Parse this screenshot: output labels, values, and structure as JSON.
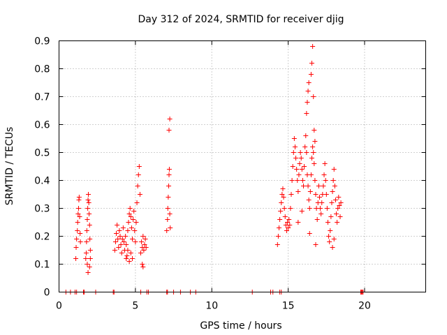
{
  "chart_data": {
    "type": "scatter",
    "title": "Day 312 of 2024, SRMTID for receiver djig",
    "xlabel": "GPS time / hours",
    "ylabel": "SRMTID / TECUs",
    "xlim": [
      0,
      24
    ],
    "ylim": [
      0,
      0.9
    ],
    "xticks": [
      0,
      5,
      10,
      15,
      20
    ],
    "xtick_labels": [
      "0",
      "5",
      "10",
      "15",
      "20"
    ],
    "yticks": [
      0,
      0.1,
      0.2,
      0.3,
      0.4,
      0.5,
      0.6,
      0.7,
      0.8,
      0.9
    ],
    "ytick_labels": [
      "0",
      "0.1",
      "0.2",
      "0.3",
      "0.4",
      "0.5",
      "0.6",
      "0.7",
      "0.8",
      "0.9"
    ],
    "grid": true,
    "marker": "+",
    "color": "#ff0000",
    "series": [
      {
        "name": "SRMTID",
        "points": [
          [
            0.45,
            0
          ],
          [
            0.75,
            0
          ],
          [
            1.05,
            0
          ],
          [
            1.15,
            0
          ],
          [
            1.6,
            0
          ],
          [
            1.65,
            0
          ],
          [
            2.4,
            0
          ],
          [
            3.55,
            0
          ],
          [
            3.6,
            0
          ],
          [
            5.35,
            0
          ],
          [
            5.75,
            0
          ],
          [
            5.85,
            0
          ],
          [
            7.05,
            0
          ],
          [
            7.1,
            0
          ],
          [
            7.5,
            0
          ],
          [
            7.95,
            0
          ],
          [
            8.6,
            0
          ],
          [
            8.95,
            0
          ],
          [
            12.65,
            0
          ],
          [
            13.85,
            0
          ],
          [
            14.0,
            0
          ],
          [
            14.45,
            0
          ],
          [
            14.55,
            0
          ],
          [
            19.75,
            0
          ],
          [
            19.8,
            0
          ],
          [
            19.85,
            0
          ],
          [
            19.9,
            0
          ],
          [
            1.1,
            0.12
          ],
          [
            1.12,
            0.16
          ],
          [
            1.15,
            0.19
          ],
          [
            1.2,
            0.22
          ],
          [
            1.22,
            0.25
          ],
          [
            1.25,
            0.28
          ],
          [
            1.28,
            0.3
          ],
          [
            1.3,
            0.33
          ],
          [
            1.32,
            0.34
          ],
          [
            1.35,
            0.27
          ],
          [
            1.38,
            0.21
          ],
          [
            1.4,
            0.18
          ],
          [
            1.75,
            0.12
          ],
          [
            1.78,
            0.14
          ],
          [
            1.8,
            0.18
          ],
          [
            1.82,
            0.22
          ],
          [
            1.85,
            0.26
          ],
          [
            1.88,
            0.3
          ],
          [
            1.9,
            0.33
          ],
          [
            1.92,
            0.35
          ],
          [
            1.95,
            0.32
          ],
          [
            1.97,
            0.28
          ],
          [
            2.0,
            0.24
          ],
          [
            2.02,
            0.19
          ],
          [
            2.05,
            0.15
          ],
          [
            1.85,
            0.1
          ],
          [
            1.9,
            0.07
          ],
          [
            2.0,
            0.09
          ],
          [
            2.05,
            0.12
          ],
          [
            3.65,
            0.15
          ],
          [
            3.7,
            0.18
          ],
          [
            3.75,
            0.21
          ],
          [
            3.8,
            0.24
          ],
          [
            3.85,
            0.19
          ],
          [
            3.9,
            0.16
          ],
          [
            3.95,
            0.22
          ],
          [
            4.0,
            0.2
          ],
          [
            4.05,
            0.17
          ],
          [
            4.1,
            0.14
          ],
          [
            4.15,
            0.19
          ],
          [
            4.2,
            0.23
          ],
          [
            4.25,
            0.18
          ],
          [
            4.3,
            0.15
          ],
          [
            4.35,
            0.2
          ],
          [
            4.4,
            0.17
          ],
          [
            4.45,
            0.13
          ],
          [
            4.5,
            0.22
          ],
          [
            4.55,
            0.25
          ],
          [
            4.6,
            0.28
          ],
          [
            4.65,
            0.3
          ],
          [
            4.7,
            0.27
          ],
          [
            4.75,
            0.23
          ],
          [
            4.8,
            0.19
          ],
          [
            4.85,
            0.26
          ],
          [
            4.9,
            0.29
          ],
          [
            4.95,
            0.22
          ],
          [
            5.0,
            0.18
          ],
          [
            5.05,
            0.25
          ],
          [
            5.1,
            0.32
          ],
          [
            5.15,
            0.38
          ],
          [
            5.2,
            0.42
          ],
          [
            5.25,
            0.45
          ],
          [
            5.3,
            0.35
          ],
          [
            4.4,
            0.12
          ],
          [
            4.5,
            0.15
          ],
          [
            4.6,
            0.11
          ],
          [
            4.7,
            0.14
          ],
          [
            4.8,
            0.12
          ],
          [
            5.35,
            0.14
          ],
          [
            5.4,
            0.18
          ],
          [
            5.45,
            0.16
          ],
          [
            5.5,
            0.2
          ],
          [
            5.55,
            0.15
          ],
          [
            5.6,
            0.17
          ],
          [
            5.65,
            0.19
          ],
          [
            5.7,
            0.16
          ],
          [
            5.45,
            0.1
          ],
          [
            5.5,
            0.09
          ],
          [
            7.05,
            0.22
          ],
          [
            7.1,
            0.26
          ],
          [
            7.12,
            0.3
          ],
          [
            7.15,
            0.34
          ],
          [
            7.18,
            0.38
          ],
          [
            7.2,
            0.42
          ],
          [
            7.22,
            0.44
          ],
          [
            7.25,
            0.28
          ],
          [
            7.28,
            0.23
          ],
          [
            7.2,
            0.58
          ],
          [
            7.25,
            0.62
          ],
          [
            14.3,
            0.17
          ],
          [
            14.35,
            0.2
          ],
          [
            14.4,
            0.23
          ],
          [
            14.45,
            0.26
          ],
          [
            14.5,
            0.29
          ],
          [
            14.55,
            0.32
          ],
          [
            14.6,
            0.35
          ],
          [
            14.65,
            0.37
          ],
          [
            14.7,
            0.34
          ],
          [
            14.75,
            0.3
          ],
          [
            14.8,
            0.27
          ],
          [
            14.85,
            0.24
          ],
          [
            14.9,
            0.22
          ],
          [
            14.95,
            0.25
          ],
          [
            15.0,
            0.23
          ],
          [
            15.05,
            0.26
          ],
          [
            15.1,
            0.24
          ],
          [
            15.15,
            0.3
          ],
          [
            15.2,
            0.35
          ],
          [
            15.25,
            0.4
          ],
          [
            15.3,
            0.45
          ],
          [
            15.35,
            0.5
          ],
          [
            15.4,
            0.55
          ],
          [
            15.45,
            0.52
          ],
          [
            15.5,
            0.48
          ],
          [
            15.55,
            0.44
          ],
          [
            15.6,
            0.4
          ],
          [
            15.65,
            0.36
          ],
          [
            15.7,
            0.42
          ],
          [
            15.75,
            0.46
          ],
          [
            15.8,
            0.5
          ],
          [
            15.85,
            0.48
          ],
          [
            15.9,
            0.44
          ],
          [
            15.95,
            0.4
          ],
          [
            16.0,
            0.38
          ],
          [
            16.05,
            0.45
          ],
          [
            16.1,
            0.52
          ],
          [
            16.15,
            0.56
          ],
          [
            16.2,
            0.5
          ],
          [
            16.25,
            0.42
          ],
          [
            16.3,
            0.38
          ],
          [
            16.35,
            0.33
          ],
          [
            16.4,
            0.3
          ],
          [
            16.45,
            0.36
          ],
          [
            16.5,
            0.42
          ],
          [
            16.55,
            0.48
          ],
          [
            16.6,
            0.52
          ],
          [
            16.65,
            0.5
          ],
          [
            16.7,
            0.46
          ],
          [
            16.75,
            0.4
          ],
          [
            16.8,
            0.35
          ],
          [
            16.85,
            0.3
          ],
          [
            16.9,
            0.26
          ],
          [
            16.95,
            0.32
          ],
          [
            17.0,
            0.38
          ],
          [
            17.05,
            0.34
          ],
          [
            17.1,
            0.3
          ],
          [
            17.15,
            0.28
          ],
          [
            17.2,
            0.32
          ],
          [
            17.25,
            0.35
          ],
          [
            17.3,
            0.38
          ],
          [
            17.35,
            0.42
          ],
          [
            17.4,
            0.46
          ],
          [
            17.45,
            0.4
          ],
          [
            17.5,
            0.35
          ],
          [
            17.55,
            0.3
          ],
          [
            17.6,
            0.25
          ],
          [
            17.65,
            0.2
          ],
          [
            17.7,
            0.18
          ],
          [
            17.75,
            0.22
          ],
          [
            17.8,
            0.27
          ],
          [
            17.85,
            0.32
          ],
          [
            17.9,
            0.36
          ],
          [
            17.95,
            0.4
          ],
          [
            18.0,
            0.44
          ],
          [
            18.05,
            0.38
          ],
          [
            18.1,
            0.33
          ],
          [
            18.15,
            0.28
          ],
          [
            18.2,
            0.25
          ],
          [
            18.25,
            0.3
          ],
          [
            18.3,
            0.34
          ],
          [
            18.35,
            0.31
          ],
          [
            18.4,
            0.27
          ],
          [
            18.45,
            0.32
          ],
          [
            16.2,
            0.64
          ],
          [
            16.25,
            0.68
          ],
          [
            16.3,
            0.72
          ],
          [
            16.35,
            0.75
          ],
          [
            16.5,
            0.78
          ],
          [
            16.55,
            0.82
          ],
          [
            16.6,
            0.88
          ],
          [
            16.65,
            0.7
          ],
          [
            16.7,
            0.58
          ],
          [
            16.75,
            0.54
          ],
          [
            15.65,
            0.25
          ],
          [
            15.9,
            0.29
          ],
          [
            16.4,
            0.21
          ],
          [
            16.8,
            0.17
          ],
          [
            17.9,
            0.16
          ],
          [
            18.0,
            0.19
          ]
        ]
      }
    ]
  }
}
